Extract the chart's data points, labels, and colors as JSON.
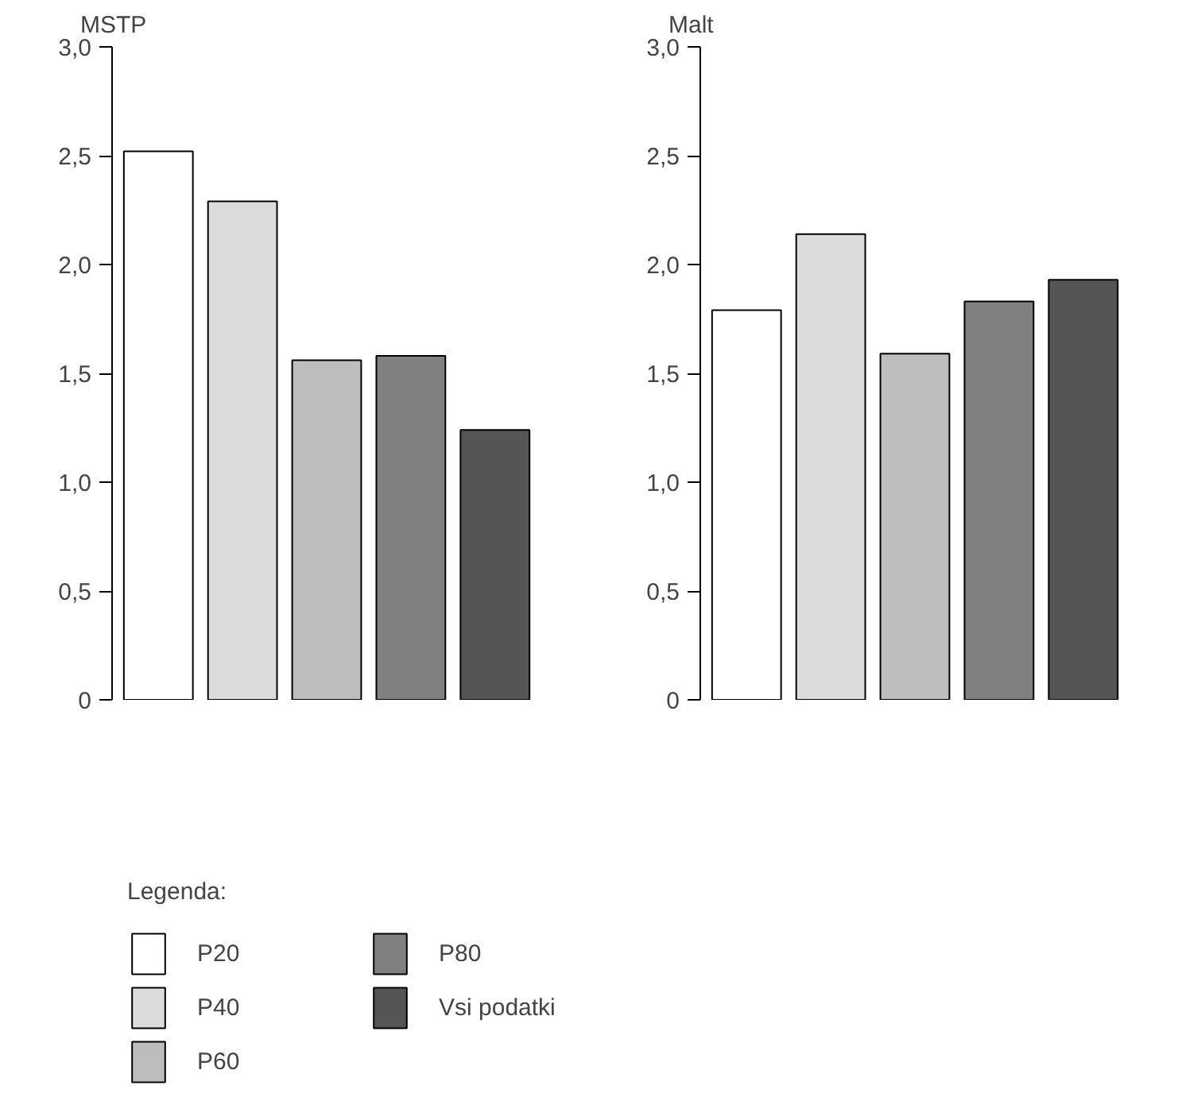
{
  "chart_data": [
    {
      "type": "bar",
      "title": "MSTP",
      "categories": [
        null
      ],
      "series": [
        {
          "name": "P20",
          "color": "#ffffff",
          "values": [
            2.52
          ]
        },
        {
          "name": "P40",
          "color": "#dcdcdc",
          "values": [
            2.29
          ]
        },
        {
          "name": "P60",
          "color": "#bdbdbd",
          "values": [
            1.56
          ]
        },
        {
          "name": "P80",
          "color": "#808080",
          "values": [
            1.58
          ]
        },
        {
          "name": "Vsi podatki",
          "color": "#555555",
          "values": [
            1.24
          ]
        }
      ],
      "ylim": [
        0,
        3
      ],
      "yticks": [
        0,
        {
          "value": 0.5,
          "label": "0,5"
        },
        {
          "value": 1,
          "label": "1,0"
        },
        {
          "value": 1.5,
          "label": "1,5"
        },
        {
          "value": 2,
          "label": "2,0"
        },
        {
          "value": 2.5,
          "label": "2,5"
        },
        {
          "value": 3,
          "label": "3,0"
        }
      ],
      "tick_labels": "y",
      "grid": false,
      "legend": "bottom",
      "legend_title": "Legenda:"
    },
    {
      "type": "bar",
      "title": "Malt",
      "categories": [
        null,
        null,
        null,
        null,
        null
      ],
      "values": [
        1.79,
        2.14,
        1.59,
        1.83,
        1.93
      ],
      "colors": [
        "#ffffff",
        "#dcdcdc",
        "#bdbdbd",
        "#808080",
        "#555555"
      ],
      "ylim": [
        0,
        3
      ],
      "yticks": [
        0,
        {
          "value": 0.5,
          "label": "0,5"
        },
        {
          "value": 1,
          "label": "1,0"
        },
        {
          "value": 1.5,
          "label": "1,5"
        },
        {
          "value": 2,
          "label": "2,0"
        },
        {
          "value": 2.5,
          "label": "2,5"
        },
        {
          "value": 3,
          "label": "3,0"
        }
      ],
      "tick_labels": "y",
      "grid": false,
      "legend": false
    }
  ]
}
